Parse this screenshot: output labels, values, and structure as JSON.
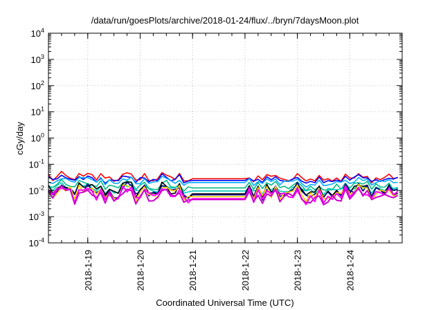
{
  "chart_data": {
    "type": "line",
    "title": "/data/run/goesPlots/archive/2018-01-24/flux/../bryn/7daysMoon.plot",
    "xlabel": "Coordinated Universal Time (UTC)",
    "ylabel": "cGy/day",
    "y_scale": "log",
    "ylim": [
      0.0001,
      10000
    ],
    "y_ticks": [
      {
        "base": "10",
        "exp": "-4",
        "value": 0.0001
      },
      {
        "base": "10",
        "exp": "-3",
        "value": 0.001
      },
      {
        "base": "10",
        "exp": "-2",
        "value": 0.01
      },
      {
        "base": "10",
        "exp": "-1",
        "value": 0.1
      },
      {
        "base": "10",
        "exp": "0",
        "value": 1
      },
      {
        "base": "10",
        "exp": "1",
        "value": 10
      },
      {
        "base": "10",
        "exp": "2",
        "value": 100
      },
      {
        "base": "10",
        "exp": "3",
        "value": 1000
      },
      {
        "base": "10",
        "exp": "4",
        "value": 10000
      }
    ],
    "xlim": [
      "2018-01-18T06:00",
      "2018-01-24T23:59"
    ],
    "x_ticks": [
      "2018-1-19",
      "2018-1-20",
      "2018-1-21",
      "2018-1-22",
      "2018-1-23",
      "2018-1-24"
    ],
    "grid": true,
    "series": [
      {
        "color": "#ff0000",
        "base": 0.031,
        "jitter": 0.28,
        "gap": 0.028
      },
      {
        "color": "#0000ff",
        "base": 0.027,
        "jitter": 0.26,
        "gap": 0.024
      },
      {
        "color": "#00aaff",
        "base": 0.022,
        "jitter": 0.26,
        "gap": 0.02
      },
      {
        "color": "#00bb88",
        "base": 0.015,
        "jitter": 0.32,
        "gap": 0.0125
      },
      {
        "color": "#00ccbb",
        "base": 0.012,
        "jitter": 0.32,
        "gap": 0.0095
      },
      {
        "color": "#000000",
        "base": 0.0105,
        "jitter": 0.42,
        "gap": 0.0075
      },
      {
        "color": "#000080",
        "base": 0.0095,
        "jitter": 0.45,
        "gap": 0.0068
      },
      {
        "color": "#ffcc00",
        "base": 0.0082,
        "jitter": 0.48,
        "gap": 0.0058
      },
      {
        "color": "#ff00ff",
        "base": 0.0072,
        "jitter": 0.5,
        "gap": 0.0048
      },
      {
        "color": "#cc00cc",
        "base": 0.0066,
        "jitter": 0.5,
        "gap": 0.0045
      }
    ],
    "data_gap": [
      "2018-01-20T23:00",
      "2018-01-22T00:00"
    ]
  }
}
